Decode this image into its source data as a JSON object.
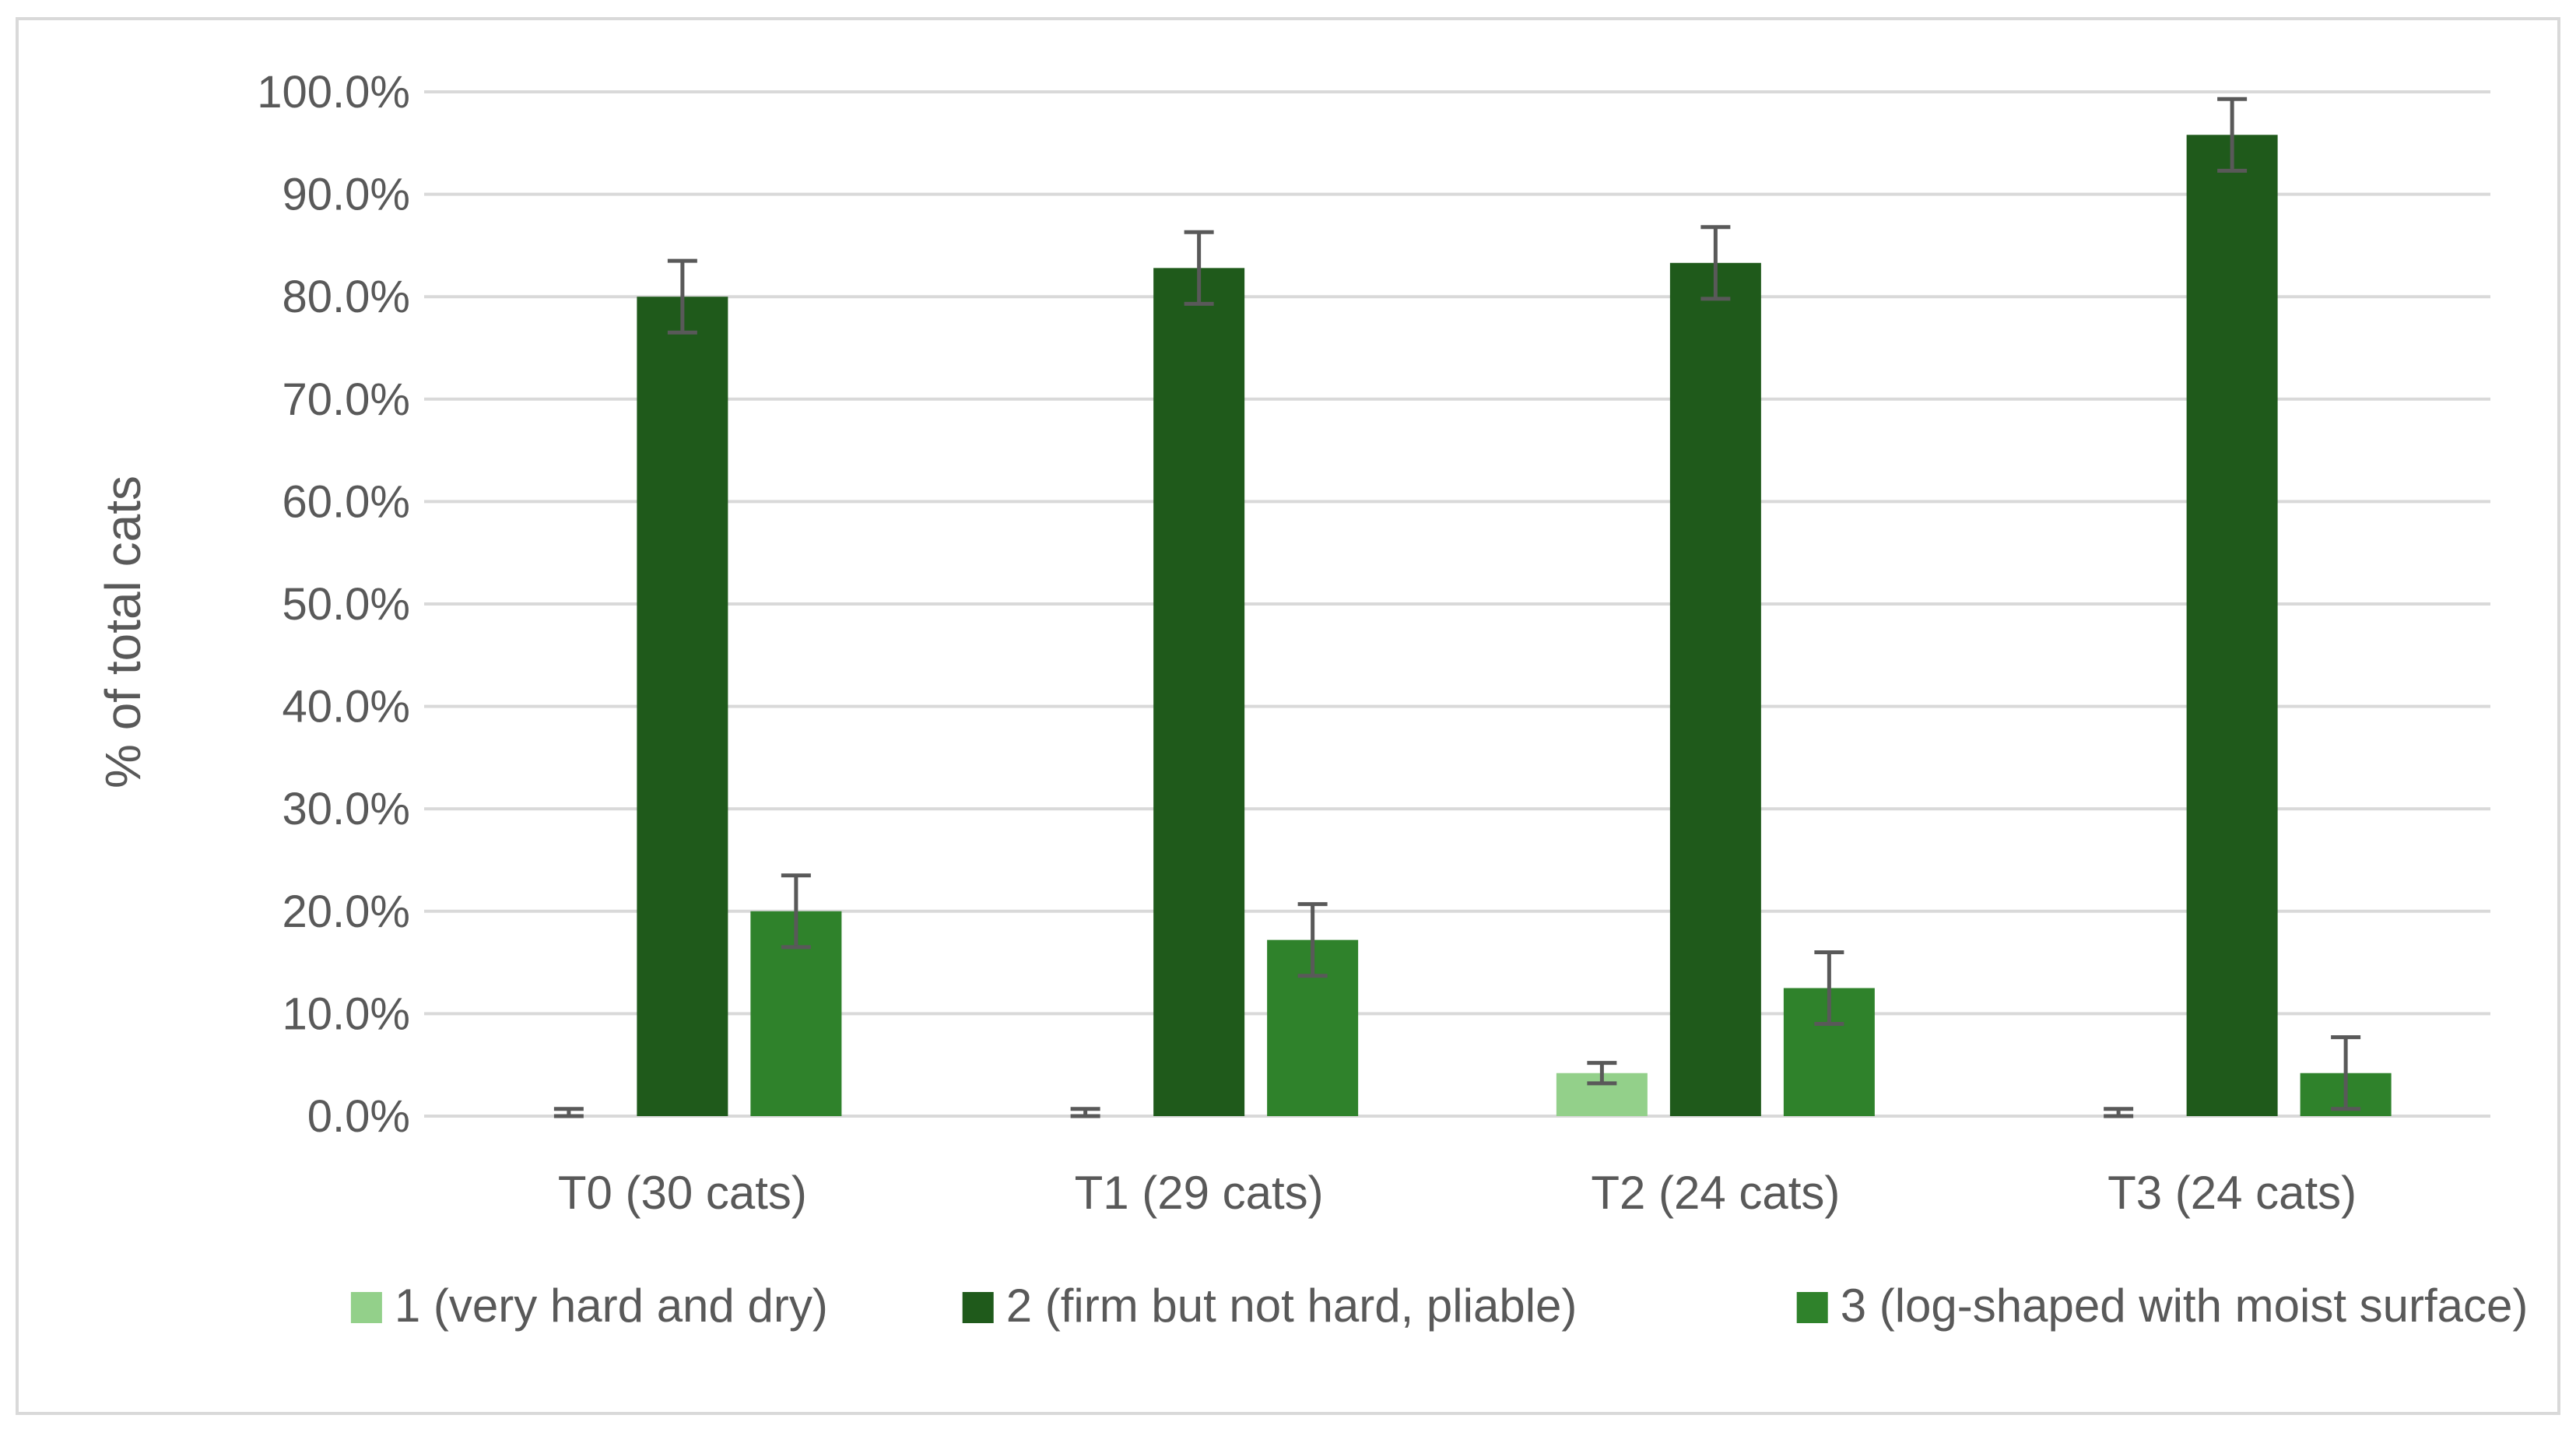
{
  "chart_data": {
    "type": "bar",
    "title": "",
    "xlabel": "",
    "ylabel": "% of total cats",
    "ylim": [
      0,
      100
    ],
    "yticks": [
      0,
      10,
      20,
      30,
      40,
      50,
      60,
      70,
      80,
      90,
      100
    ],
    "ytick_labels": [
      "0.0%",
      "10.0%",
      "20.0%",
      "30.0%",
      "40.0%",
      "50.0%",
      "60.0%",
      "70.0%",
      "80.0%",
      "90.0%",
      "100.0%"
    ],
    "grid": true,
    "legend_position": "bottom",
    "categories": [
      "T0 (30 cats)",
      "T1 (29 cats)",
      "T2 (24 cats)",
      "T3 (24 cats)"
    ],
    "series": [
      {
        "name": "1 (very hard and dry)",
        "color": "#93d08a",
        "values": [
          0.0,
          0.0,
          4.2,
          0.0
        ],
        "error": [
          0.7,
          0.7,
          1.0,
          0.7
        ]
      },
      {
        "name": "2 (firm but not hard, pliable)",
        "color": "#1f5a1b",
        "values": [
          80.0,
          82.8,
          83.3,
          95.8
        ],
        "error": [
          3.5,
          3.5,
          3.5,
          3.5
        ]
      },
      {
        "name": "3 (log-shaped with moist surface)",
        "color": "#2f822b",
        "values": [
          20.0,
          17.2,
          12.5,
          4.2
        ],
        "error": [
          3.5,
          3.5,
          3.5,
          3.5
        ]
      }
    ]
  }
}
